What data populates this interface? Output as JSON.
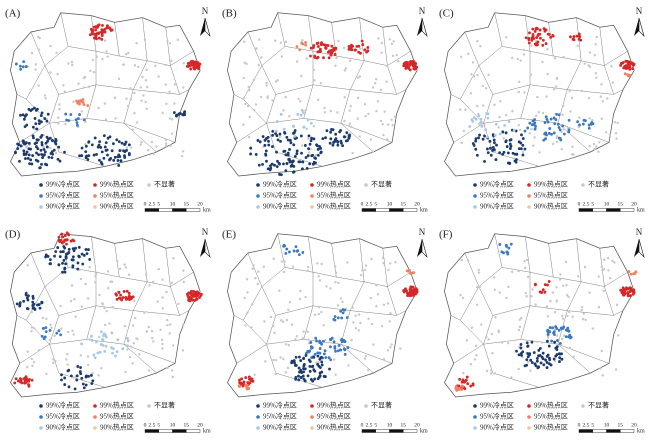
{
  "panels": [
    {
      "label": "(A)"
    },
    {
      "label": "(B)"
    },
    {
      "label": "(C)"
    },
    {
      "label": "(D)"
    },
    {
      "label": "(E)"
    },
    {
      "label": "(F)"
    }
  ],
  "legend": [
    {
      "label": "99%冷点区",
      "color": "#1b3a6b"
    },
    {
      "label": "95%冷点区",
      "color": "#3b78c0"
    },
    {
      "label": "90%冷点区",
      "color": "#a9c8e6"
    },
    {
      "label": "99%热点区",
      "color": "#d62728"
    },
    {
      "label": "95%热点区",
      "color": "#ef8060"
    },
    {
      "label": "90%热点区",
      "color": "#f5c39a"
    },
    {
      "label": "不显著",
      "color": "#c8c8c8"
    }
  ],
  "north": "N",
  "scale": {
    "ticks": [
      "0",
      "2.5",
      "5",
      "10",
      "15",
      "20"
    ],
    "unit": "km"
  }
}
